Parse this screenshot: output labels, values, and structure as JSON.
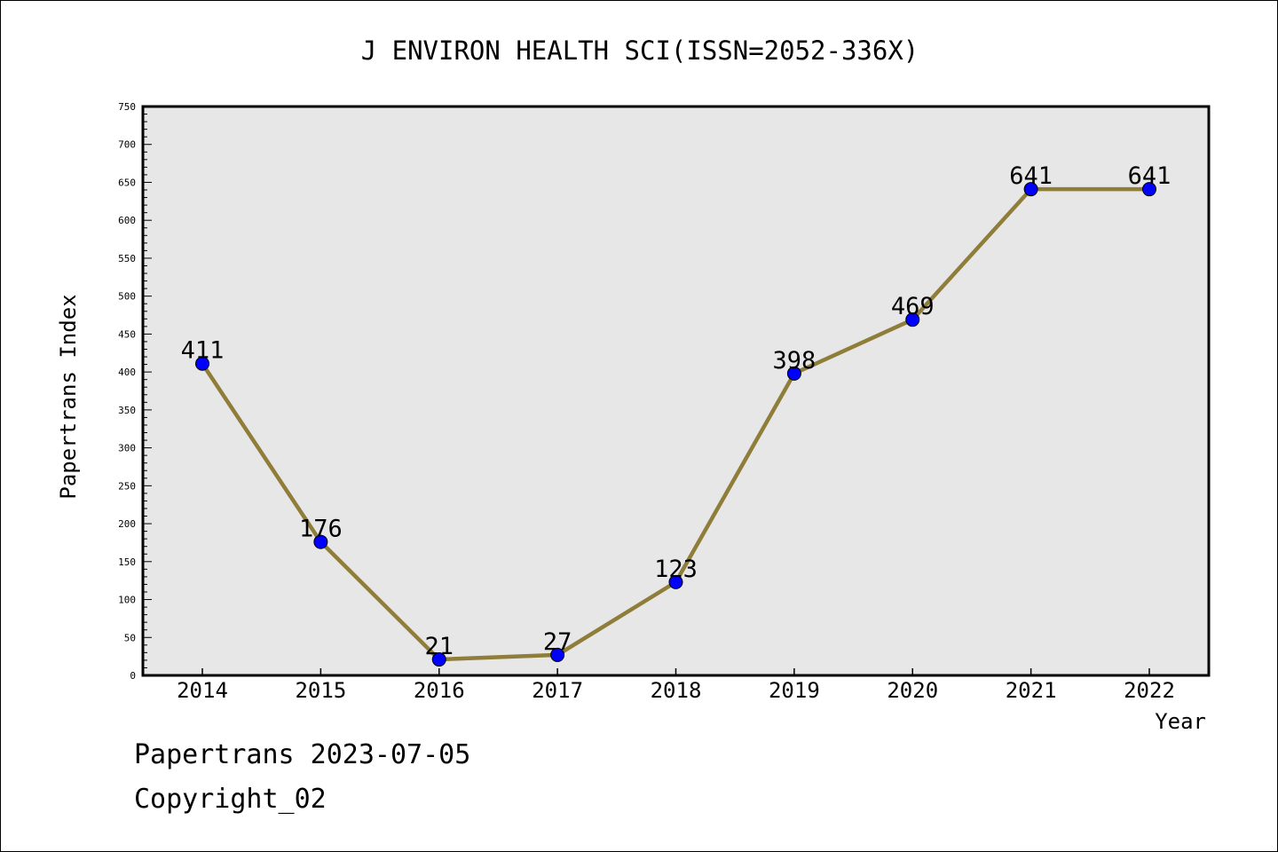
{
  "chart_data": {
    "type": "line",
    "title": "J ENVIRON HEALTH SCI(ISSN=2052-336X)",
    "xlabel": "Year",
    "ylabel": "Papertrans Index",
    "categories": [
      "2014",
      "2015",
      "2016",
      "2017",
      "2018",
      "2019",
      "2020",
      "2021",
      "2022"
    ],
    "values": [
      411,
      176,
      21,
      27,
      123,
      398,
      469,
      641,
      641
    ],
    "data_labels": [
      "411",
      "176",
      "21",
      "27",
      "123",
      "398",
      "469",
      "641",
      "641"
    ],
    "ylim": [
      0,
      750
    ],
    "yticks": [
      0,
      50,
      100,
      150,
      200,
      250,
      300,
      350,
      400,
      450,
      500,
      550,
      600,
      650,
      700,
      750
    ],
    "grid": false,
    "line_color": "#8f7d3a",
    "marker_color": "#0000ff",
    "plot_background": "#e7e7e7"
  },
  "footer": {
    "line1": "Papertrans 2023-07-05",
    "line2": "Copyright_02"
  }
}
